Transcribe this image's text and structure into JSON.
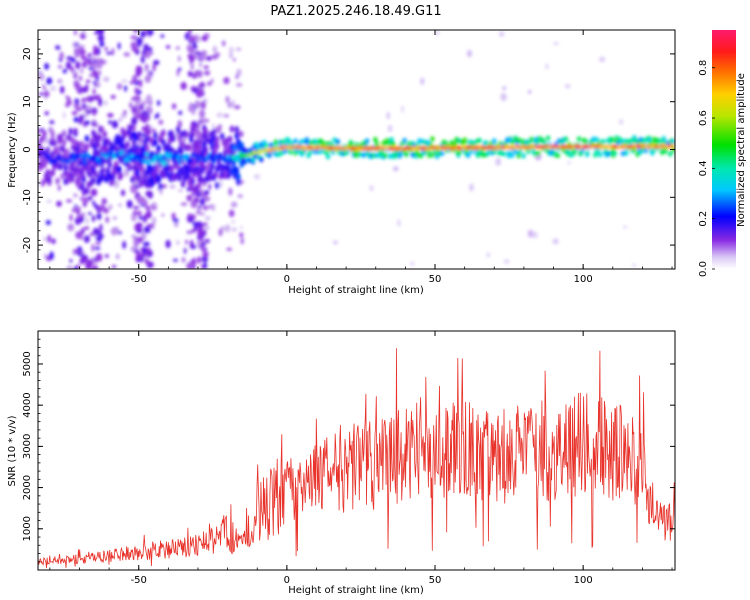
{
  "title": "PAZ1.2025.246.18.49.G11",
  "chart_data": [
    {
      "type": "heatmap",
      "xlabel": "Height of straight line (km)",
      "ylabel": "Frequency (Hz)",
      "xlim": [
        -84,
        131
      ],
      "ylim": [
        -25,
        25
      ],
      "xticks": [
        -50,
        0,
        50,
        100
      ],
      "yticks": [
        -20,
        -10,
        0,
        10,
        20
      ],
      "colorbar": {
        "label": "Normalized spectral amplitude",
        "range": [
          0,
          0.95
        ],
        "ticks": [
          0.0,
          0.2,
          0.4,
          0.6,
          0.8
        ],
        "colormap": "rainbow"
      },
      "ridge": {
        "x": [
          -84,
          -70,
          -55,
          -40,
          -30,
          -20,
          -18,
          -10,
          0,
          20,
          50,
          80,
          100,
          131
        ],
        "center_freq_hz": [
          -1.5,
          -2.0,
          -1.5,
          -2.0,
          -1.5,
          -1.5,
          -2.0,
          -0.5,
          0.5,
          0.2,
          0.3,
          0.5,
          0.6,
          0.7
        ],
        "peak_amplitude": [
          0.22,
          0.3,
          0.35,
          0.35,
          0.3,
          0.32,
          0.45,
          0.7,
          0.85,
          0.9,
          0.9,
          0.9,
          0.9,
          0.88
        ]
      }
    },
    {
      "type": "line",
      "xlabel": "Height of straight line (km)",
      "ylabel": "SNR (10 * v/v)",
      "xlim": [
        -84,
        131
      ],
      "ylim": [
        0,
        5800
      ],
      "xticks": [
        -50,
        0,
        50,
        100
      ],
      "yticks": [
        1000,
        2000,
        3000,
        4000,
        5000
      ],
      "color": "#e8322a",
      "series": [
        {
          "x": [
            -84,
            -75,
            -65,
            -55,
            -45,
            -35,
            -25,
            -20,
            -15,
            -10,
            -5,
            0,
            5,
            10,
            15,
            20,
            25,
            30,
            35,
            40,
            45,
            50,
            55,
            60,
            65,
            70,
            75,
            80,
            85,
            90,
            95,
            100,
            105,
            110,
            115,
            120,
            125,
            131
          ],
          "y": [
            200,
            250,
            300,
            400,
            450,
            550,
            700,
            1000,
            600,
            1400,
            1700,
            1900,
            2000,
            2200,
            2300,
            2400,
            2600,
            2500,
            2700,
            2800,
            2600,
            2700,
            2800,
            2900,
            2800,
            2900,
            2700,
            2900,
            3000,
            2800,
            3000,
            3100,
            3000,
            2900,
            2800,
            2300,
            1200,
            1100
          ]
        }
      ]
    }
  ]
}
